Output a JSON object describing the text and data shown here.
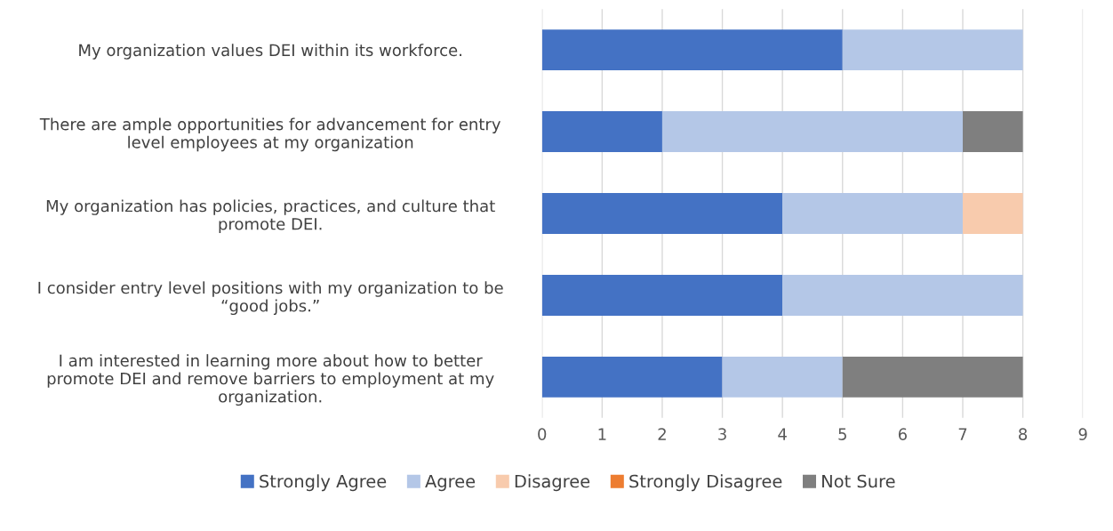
{
  "chart_data": {
    "type": "bar",
    "orientation": "horizontal",
    "stacked": true,
    "categories": [
      "My organization values DEI within its workforce.",
      "There are ample opportunities for advancement for entry\nlevel employees at my organization",
      "My organization has policies, practices, and culture that\npromote DEI.",
      "I consider entry level positions with my organization to be\n“good jobs.”",
      "I am interested in learning more about how to better\npromote DEI and remove barriers to employment at my\norganization."
    ],
    "series": [
      {
        "name": "Strongly Agree",
        "color": "#4472c4",
        "values": [
          5,
          2,
          4,
          4,
          3
        ]
      },
      {
        "name": "Agree",
        "color": "#b4c7e7",
        "values": [
          3,
          5,
          3,
          4,
          2
        ]
      },
      {
        "name": "Disagree",
        "color": "#f8cbad",
        "values": [
          0,
          0,
          1,
          0,
          0
        ]
      },
      {
        "name": "Strongly Disagree",
        "color": "#ed7d31",
        "values": [
          0,
          0,
          0,
          0,
          0
        ]
      },
      {
        "name": "Not Sure",
        "color": "#7f7f7f",
        "values": [
          0,
          1,
          0,
          0,
          3
        ]
      }
    ],
    "xlim": [
      0,
      9
    ],
    "xticks": [
      0,
      1,
      2,
      3,
      4,
      5,
      6,
      7,
      8,
      9
    ],
    "grid": "x",
    "legend": "bottom"
  }
}
